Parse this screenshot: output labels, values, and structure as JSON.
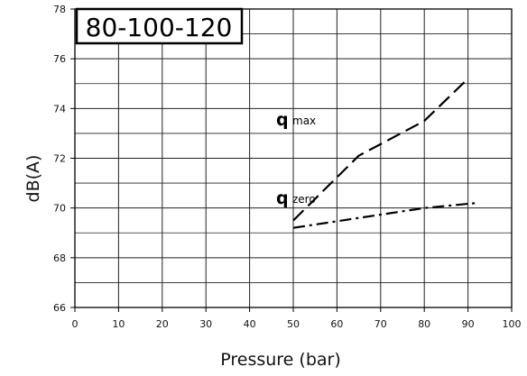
{
  "chart_data": {
    "type": "line",
    "xlabel": "Pressure (bar)",
    "ylabel": "dB(A)",
    "xlim": [
      0,
      100
    ],
    "ylim": [
      66,
      78
    ],
    "x_ticks": [
      0,
      10,
      20,
      30,
      40,
      50,
      60,
      70,
      80,
      90,
      100
    ],
    "y_ticks": [
      66,
      68,
      70,
      72,
      74,
      76,
      78
    ],
    "grid": true,
    "badge": "80-100-120",
    "series": [
      {
        "name": "q max",
        "label_main": "q",
        "label_sub": "max",
        "style": "dashed",
        "x": [
          50,
          65,
          80,
          90
        ],
        "y": [
          69.5,
          72.1,
          73.5,
          75.2
        ]
      },
      {
        "name": "q zero",
        "label_main": "q",
        "label_sub": "zero",
        "style": "dash-dot",
        "x": [
          50,
          65,
          80,
          92
        ],
        "y": [
          69.2,
          69.6,
          70.0,
          70.2
        ]
      }
    ]
  }
}
